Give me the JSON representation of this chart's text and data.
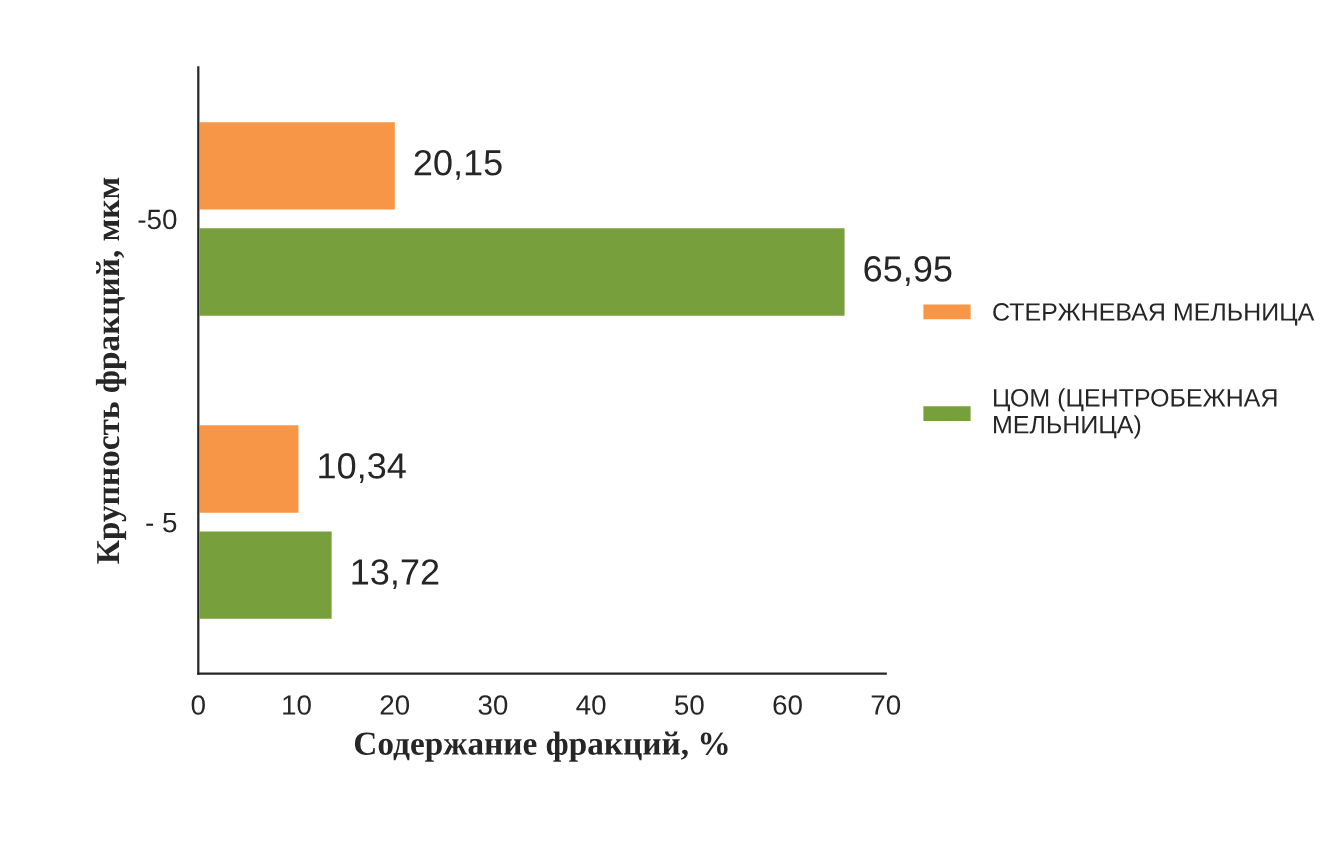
{
  "chart_data": {
    "type": "bar",
    "orientation": "horizontal",
    "xlabel": "Содержание фракций, %",
    "ylabel": "Крупность фракций, мкм",
    "categories": [
      "-50",
      "- 5"
    ],
    "series": [
      {
        "name": "СТЕРЖНЕВАЯ МЕЛЬНИЦА",
        "color": "#f79646",
        "values": [
          20.15,
          10.34
        ],
        "value_labels": [
          "20,15",
          "10,34"
        ]
      },
      {
        "name": "ЦОМ (ЦЕНТРОБЕЖНАЯ МЕЛЬНИЦА)",
        "color": "#77a03c",
        "values": [
          65.95,
          13.72
        ],
        "value_labels": [
          "65,95",
          "13,72"
        ]
      }
    ],
    "xlim": [
      0,
      70
    ],
    "xticks": [
      0,
      10,
      20,
      30,
      40,
      50,
      60,
      70
    ],
    "grid": false,
    "legend": "right"
  }
}
